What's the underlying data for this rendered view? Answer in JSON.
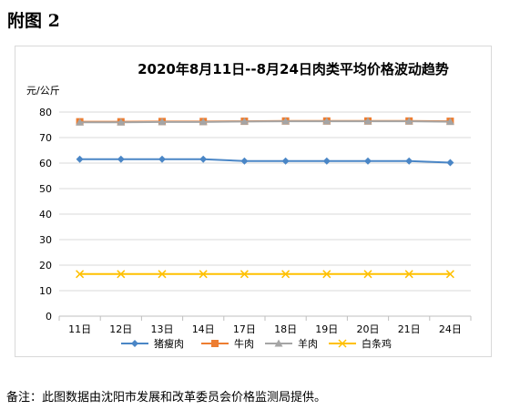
{
  "heading": "附图 2",
  "footnote": "备注：此图数据由沈阳市发展和改革委员会价格监测局提供。",
  "chart_data": {
    "type": "line",
    "title": "2020年8月11日--8月24日肉类平均价格波动趋势",
    "ylabel": "元/公斤",
    "xlabel": "",
    "categories": [
      "11日",
      "12日",
      "13日",
      "14日",
      "17日",
      "18日",
      "19日",
      "20日",
      "21日",
      "24日"
    ],
    "yticks": [
      "0",
      "10",
      "20",
      "30",
      "40",
      "50",
      "60",
      "70",
      "80"
    ],
    "ylim": [
      0,
      80
    ],
    "grid": true,
    "legend_position": "bottom",
    "series": [
      {
        "name": "猪瘦肉",
        "color": "#4a86c6",
        "marker": "diamond",
        "values": [
          61.5,
          61.5,
          61.5,
          61.5,
          60.8,
          60.8,
          60.8,
          60.8,
          60.8,
          60.2
        ]
      },
      {
        "name": "牛肉",
        "color": "#ed7d31",
        "marker": "square",
        "values": [
          76.2,
          76.2,
          76.3,
          76.3,
          76.4,
          76.5,
          76.5,
          76.5,
          76.5,
          76.4
        ]
      },
      {
        "name": "羊肉",
        "color": "#a5a5a5",
        "marker": "triangle",
        "values": [
          76.0,
          76.0,
          76.1,
          76.1,
          76.3,
          76.4,
          76.4,
          76.4,
          76.4,
          76.2
        ]
      },
      {
        "name": "白条鸡",
        "color": "#ffc000",
        "marker": "x",
        "values": [
          16.5,
          16.5,
          16.5,
          16.5,
          16.5,
          16.5,
          16.5,
          16.5,
          16.5,
          16.5
        ]
      }
    ]
  }
}
